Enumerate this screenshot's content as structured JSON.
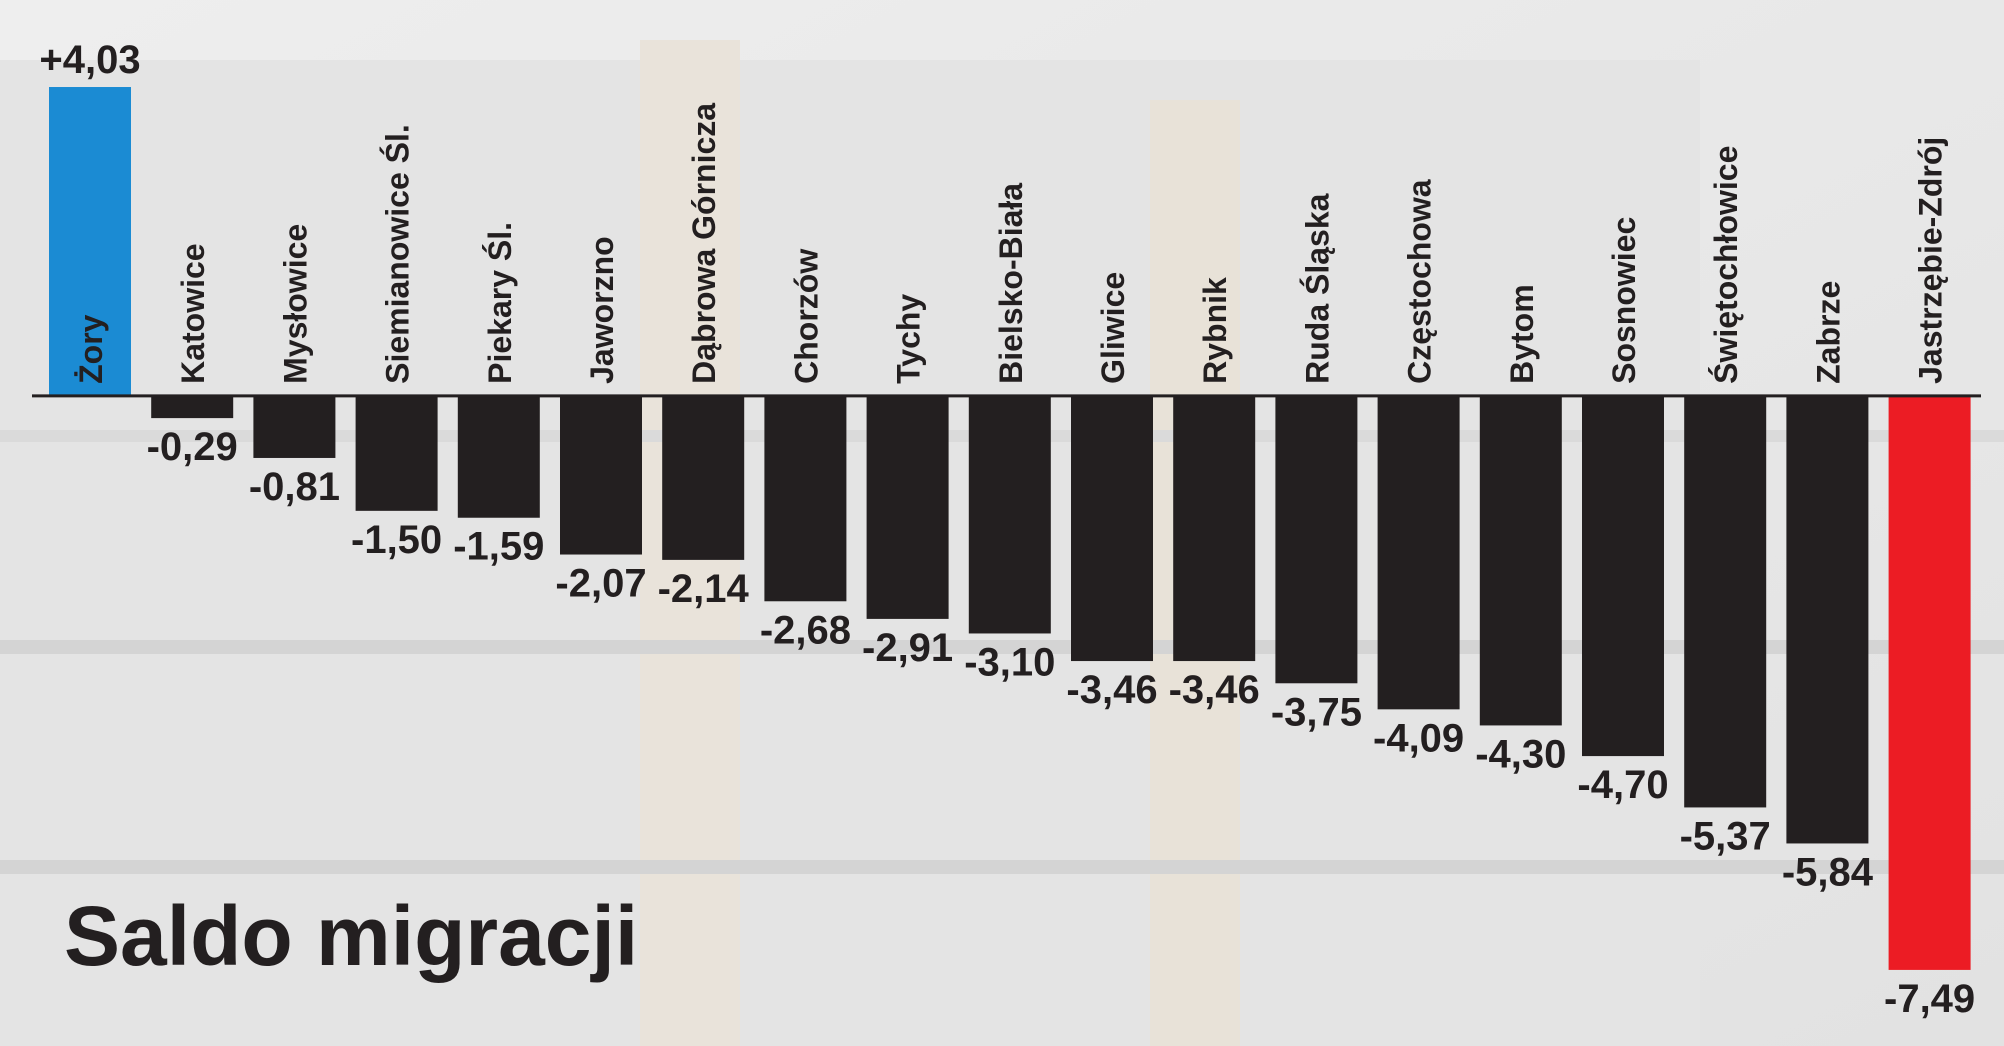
{
  "chart_data": {
    "type": "bar",
    "title": "Saldo migracji",
    "categories": [
      "Żory",
      "Katowice",
      "Mysłowice",
      "Siemianowice Śl.",
      "Piekary Śl.",
      "Jaworzno",
      "Dąbrowa Górnicza",
      "Chorzów",
      "Tychy",
      "Bielsko-Biała",
      "Gliwice",
      "Rybnik",
      "Ruda Śląska",
      "Częstochowa",
      "Bytom",
      "Sosnowiec",
      "Świętochłowice",
      "Zabrze",
      "Jastrzębie-Zdrój"
    ],
    "values": [
      4.03,
      -0.29,
      -0.81,
      -1.5,
      -1.59,
      -2.07,
      -2.14,
      -2.68,
      -2.91,
      -3.1,
      -3.46,
      -3.46,
      -3.75,
      -4.09,
      -4.3,
      -4.7,
      -5.37,
      -5.84,
      -7.49
    ],
    "value_labels": [
      "+4,03",
      "-0,29",
      "-0,81",
      "-1,50",
      "-1,59",
      "-2,07",
      "-2,14",
      "-2,68",
      "-2,91",
      "-3,10",
      "-3,46",
      "-3,46",
      "-3,75",
      "-4,09",
      "-4,30",
      "-4,70",
      "-5,37",
      "-5,84",
      "-7,49"
    ],
    "colors": [
      "#1b8bd3",
      "#231f20",
      "#231f20",
      "#231f20",
      "#231f20",
      "#231f20",
      "#231f20",
      "#231f20",
      "#231f20",
      "#231f20",
      "#231f20",
      "#231f20",
      "#231f20",
      "#231f20",
      "#231f20",
      "#231f20",
      "#231f20",
      "#231f20",
      "#ec1c24"
    ],
    "ylim": [
      -8,
      4.5
    ]
  }
}
